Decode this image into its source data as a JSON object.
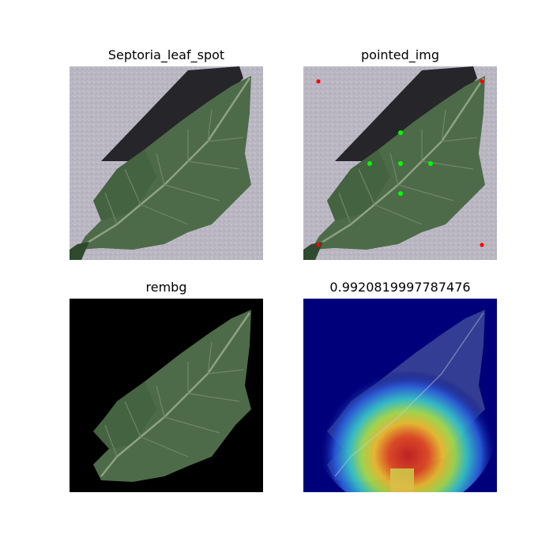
{
  "panels": [
    {
      "title": "Septoria_leaf_spot"
    },
    {
      "title": "pointed_img"
    },
    {
      "title": "rembg"
    },
    {
      "title": "0.9920819997787476"
    }
  ],
  "colors": {
    "figure_background": "#ffffff",
    "ground": "#b9b6c2",
    "shadow": "#1e1e22",
    "leaf": "#4d6b48",
    "leaf_dark": "#2f4a2e",
    "vein": "#8ea282",
    "rembg_background": "#000000",
    "heatmap_base": "#00007a",
    "point_positive": "#00ff00",
    "point_negative": "#ff0000"
  }
}
